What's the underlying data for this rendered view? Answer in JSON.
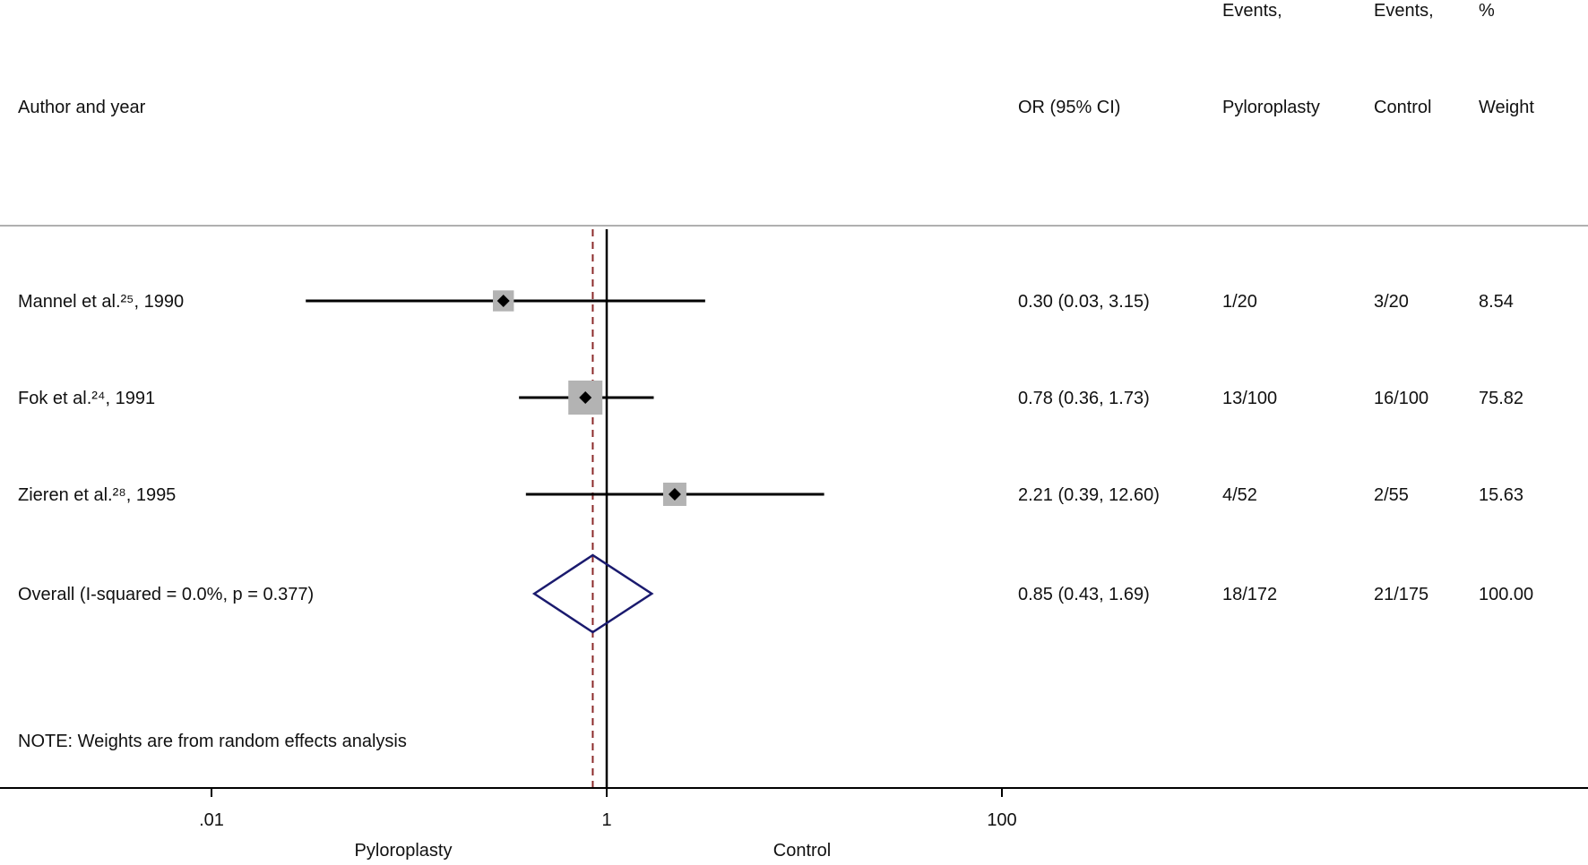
{
  "header": {
    "study_col": "Author and year",
    "or_col": "OR (95% CI)",
    "events_p_line1": "Events,",
    "events_p_line2": "Pyloroplasty",
    "events_c_line1": "Events,",
    "events_c_line2": "Control",
    "weight_line1": "%",
    "weight_line2": "Weight"
  },
  "note": "NOTE: Weights are from random effects analysis",
  "colors": {
    "line": "#000000",
    "box": "#b3b3b3",
    "overall_diamond": "#1a1a6e",
    "null_line": "#000000",
    "overall_line": "#8b2a2a",
    "separator": "#b0b0b0"
  },
  "chart_data": {
    "type": "forest",
    "measure": "OR",
    "x_scale": "log",
    "x_ticks": [
      {
        "value": 0.01,
        "label": ".01"
      },
      {
        "value": 1,
        "label": "1"
      },
      {
        "value": 100,
        "label": "100"
      }
    ],
    "xlim": [
      0.0001,
      10000
    ],
    "favours_left": "Pyloroplasty",
    "favours_right": "Control",
    "null_value": 1,
    "studies": [
      {
        "label": "Mannel et al.²⁵, 1990",
        "or": 0.3,
        "lo": 0.03,
        "hi": 3.15,
        "ci_text": "0.30 (0.03, 3.15)",
        "events_pyloroplasty": "1/20",
        "events_control": "3/20",
        "weight": "8.54"
      },
      {
        "label": "Fok et al.²⁴, 1991",
        "or": 0.78,
        "lo": 0.36,
        "hi": 1.73,
        "ci_text": "0.78 (0.36, 1.73)",
        "events_pyloroplasty": "13/100",
        "events_control": "16/100",
        "weight": "75.82"
      },
      {
        "label": "Zieren et al.²⁸, 1995",
        "or": 2.21,
        "lo": 0.39,
        "hi": 12.6,
        "ci_text": "2.21 (0.39, 12.60)",
        "events_pyloroplasty": "4/52",
        "events_control": "2/55",
        "weight": "15.63"
      }
    ],
    "overall": {
      "label": "Overall  (I-squared = 0.0%, p = 0.377)",
      "or": 0.85,
      "lo": 0.43,
      "hi": 1.69,
      "ci_text": "0.85 (0.43, 1.69)",
      "events_pyloroplasty": "18/172",
      "events_control": "21/175",
      "weight": "100.00"
    }
  }
}
